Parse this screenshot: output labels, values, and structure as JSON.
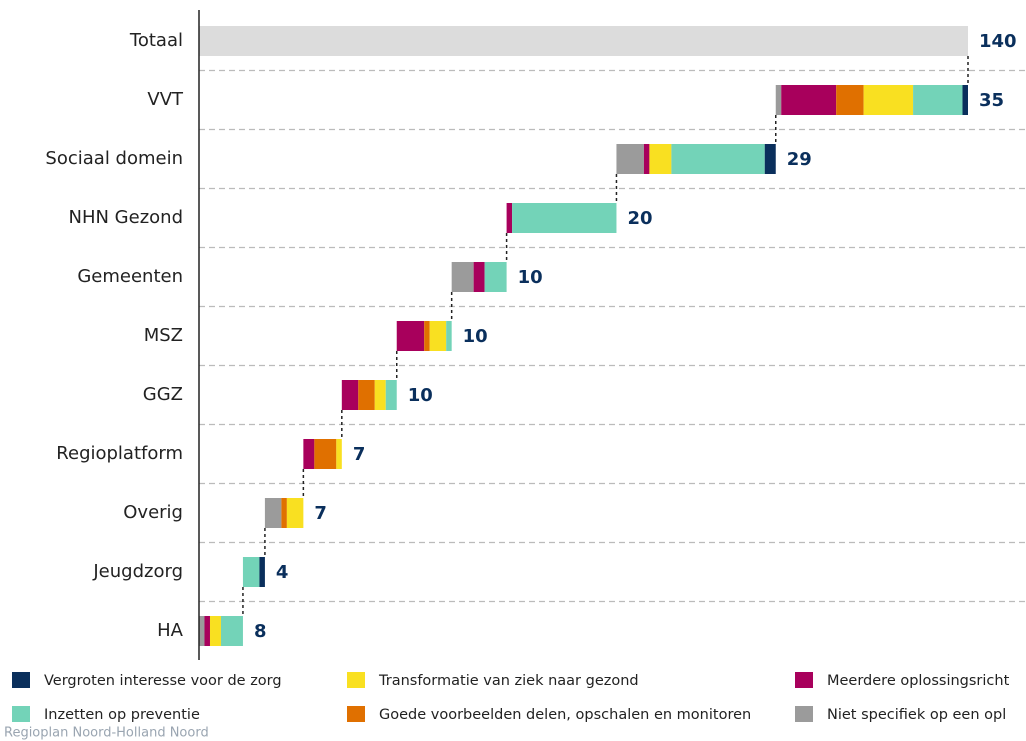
{
  "chart_data": {
    "type": "waterfall-bar",
    "categories": [
      "Totaal",
      "VVT",
      "Sociaal domein",
      "NHN Gezond",
      "Gemeenten",
      "MSZ",
      "GGZ",
      "Regioplatform",
      "Overig",
      "Jeugdzorg",
      "HA"
    ],
    "totals": [
      140,
      35,
      29,
      20,
      10,
      10,
      10,
      7,
      7,
      4,
      8
    ],
    "total_color": "#dcdcdc",
    "series": [
      {
        "name": "Niet specifiek op een opl",
        "color": "#9b9b9b",
        "values": [
          null,
          1,
          5,
          0,
          4,
          0,
          0,
          0,
          3,
          0,
          1
        ]
      },
      {
        "name": "Meerdere oplossingsricht",
        "color": "#a8005c",
        "values": [
          null,
          10,
          1,
          1,
          2,
          5,
          3,
          2,
          0,
          0,
          1
        ]
      },
      {
        "name": "Goede voorbeelden delen, opschalen en monitoren",
        "color": "#e07000",
        "values": [
          null,
          5,
          0,
          0,
          0,
          1,
          3,
          4,
          1,
          0,
          0
        ]
      },
      {
        "name": "Transformatie van ziek naar gezond",
        "color": "#f9e021",
        "values": [
          null,
          9,
          4,
          0,
          0,
          3,
          2,
          1,
          3,
          0,
          2
        ]
      },
      {
        "name": "Inzetten op preventie",
        "color": "#73d3b8",
        "values": [
          null,
          9,
          17,
          19,
          4,
          1,
          2,
          0,
          0,
          3,
          4
        ]
      },
      {
        "name": "Vergroten interesse voor de zorg",
        "color": "#0a2f5c",
        "values": [
          null,
          1,
          2,
          0,
          0,
          0,
          0,
          0,
          0,
          1,
          0
        ]
      }
    ],
    "source": "Regioplan Noord-Holland Noord"
  }
}
